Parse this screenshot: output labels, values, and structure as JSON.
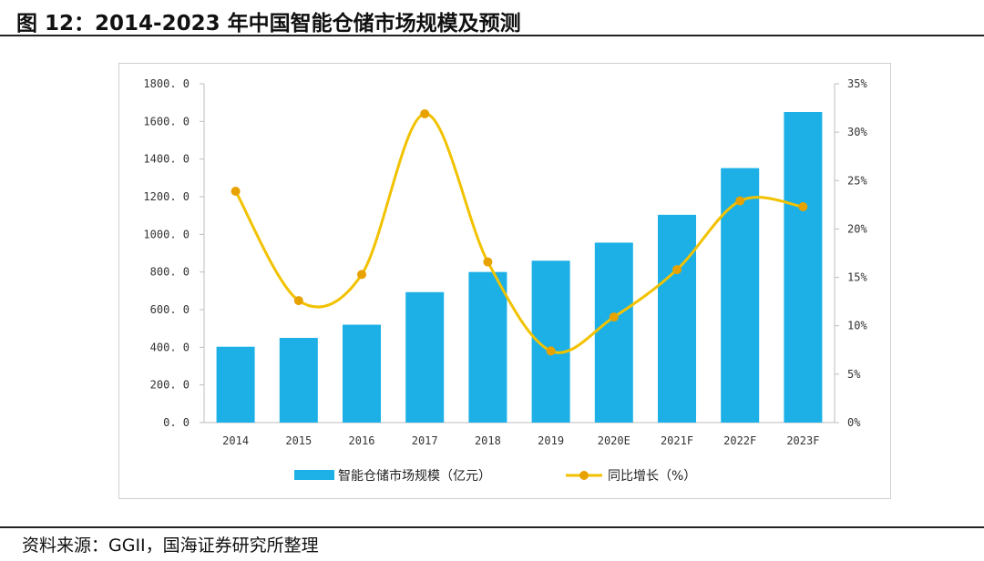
{
  "figure": {
    "title": "图 12：2014-2023 年中国智能仓储市场规模及预测",
    "source": "资料来源：GGII，国海证券研究所整理"
  },
  "chart_data": {
    "type": "bar",
    "categories": [
      "2014",
      "2015",
      "2016",
      "2017",
      "2018",
      "2019",
      "2020E",
      "2021F",
      "2022F",
      "2023F"
    ],
    "series": [
      {
        "name": "智能仓储市场规模（亿元）",
        "type": "bar",
        "axis": "left",
        "color": "#1cb0e6",
        "values": [
          403,
          450,
          520,
          693,
          800,
          860,
          956,
          1104,
          1352,
          1650
        ]
      },
      {
        "name": "同比增长（%）",
        "type": "line",
        "axis": "right",
        "color": "#f2c200",
        "marker_color": "#e8a200",
        "values": [
          23.9,
          12.6,
          15.3,
          31.9,
          16.6,
          7.4,
          10.9,
          15.8,
          22.9,
          22.3
        ]
      }
    ],
    "y_left": {
      "ylim": [
        0,
        1800
      ],
      "ticks": [
        0,
        200,
        400,
        600,
        800,
        1000,
        1200,
        1400,
        1600,
        1800
      ],
      "tick_labels": [
        "0. 0",
        "200. 0",
        "400. 0",
        "600. 0",
        "800. 0",
        "1000. 0",
        "1200. 0",
        "1400. 0",
        "1600. 0",
        "1800. 0"
      ]
    },
    "y_right": {
      "ylim": [
        0,
        35
      ],
      "ticks": [
        0,
        5,
        10,
        15,
        20,
        25,
        30,
        35
      ],
      "tick_labels": [
        "0%",
        "5%",
        "10%",
        "15%",
        "20%",
        "25%",
        "30%",
        "35%"
      ]
    },
    "grid": false,
    "legend_position": "bottom"
  }
}
